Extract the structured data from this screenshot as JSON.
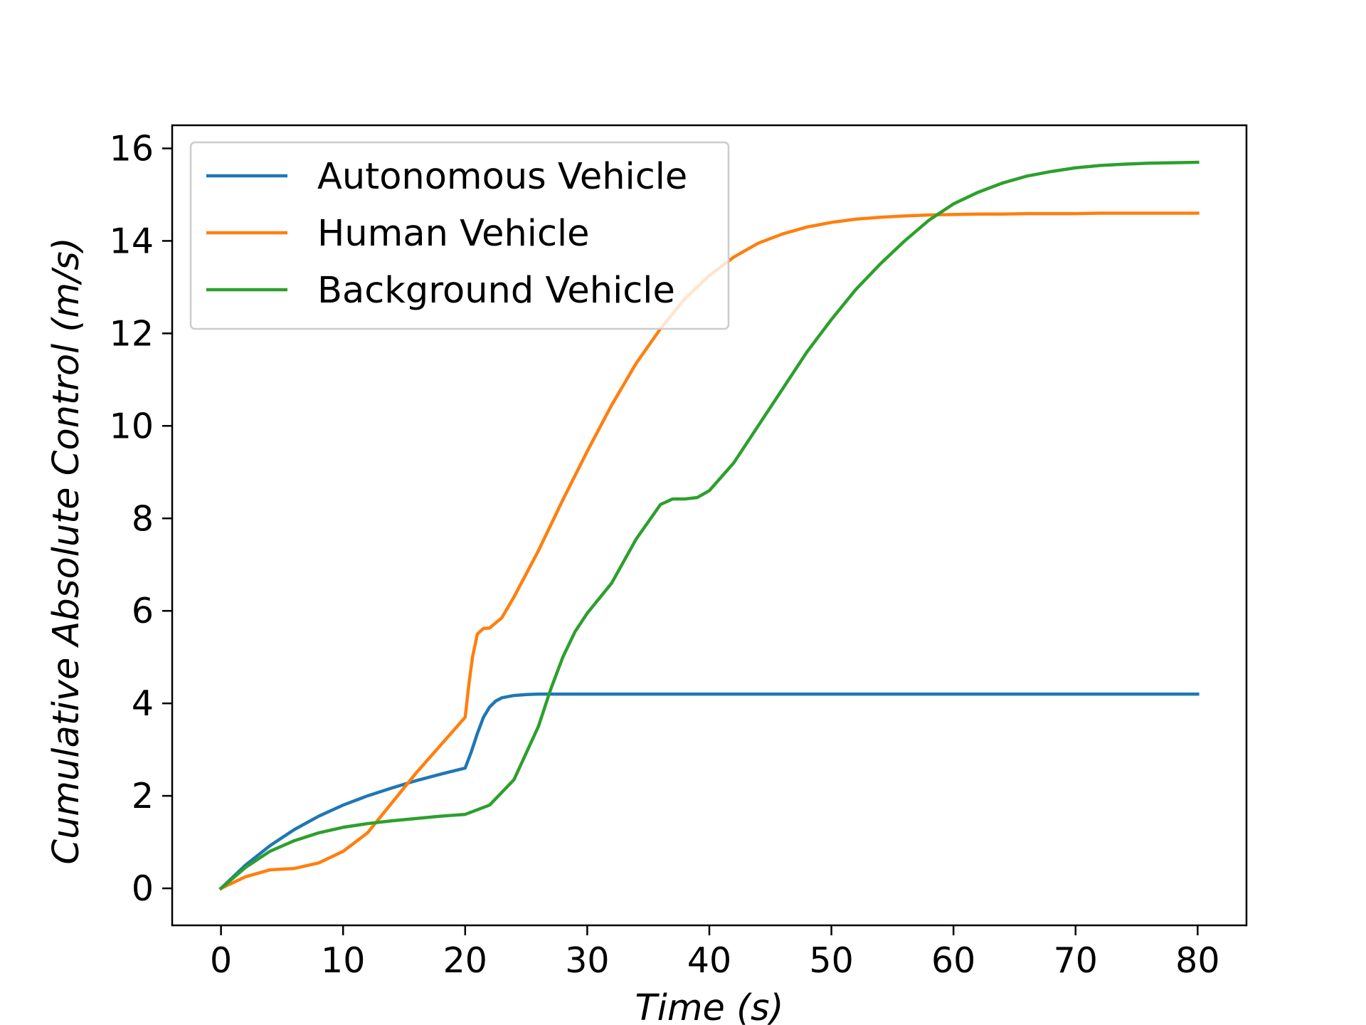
{
  "chart_data": {
    "type": "line",
    "title": "",
    "xlabel": "Time   (s)",
    "ylabel": "Cumulative   Absolute   Control   (m/s)",
    "xlim": [
      -4,
      84
    ],
    "ylim": [
      -0.8,
      16.5
    ],
    "xticks": [
      0,
      10,
      20,
      30,
      40,
      50,
      60,
      70,
      80
    ],
    "yticks": [
      0,
      2,
      4,
      6,
      8,
      10,
      12,
      14,
      16
    ],
    "grid": false,
    "legend_position": "top-left",
    "series": [
      {
        "name": "Autonomous Vehicle",
        "color": "#1f77b4",
        "x": [
          0,
          2,
          4,
          6,
          8,
          10,
          12,
          14,
          16,
          18,
          20,
          20.5,
          21,
          21.5,
          22,
          22.5,
          23,
          24,
          25,
          26,
          28,
          30,
          40,
          50,
          60,
          70,
          80
        ],
        "y": [
          0,
          0.5,
          0.92,
          1.27,
          1.56,
          1.8,
          2.0,
          2.17,
          2.33,
          2.47,
          2.6,
          2.95,
          3.35,
          3.7,
          3.92,
          4.05,
          4.12,
          4.17,
          4.19,
          4.2,
          4.2,
          4.2,
          4.2,
          4.2,
          4.2,
          4.2,
          4.2
        ]
      },
      {
        "name": "Human Vehicle",
        "color": "#ff7f0e",
        "x": [
          0,
          2,
          4,
          6,
          8,
          10,
          12,
          14,
          16,
          18,
          20,
          20.3,
          20.6,
          21,
          21.5,
          22,
          23,
          24,
          26,
          28,
          30,
          32,
          34,
          36,
          38,
          40,
          42,
          44,
          46,
          48,
          50,
          52,
          54,
          56,
          58,
          60,
          62,
          64,
          66,
          68,
          70,
          72,
          74,
          76,
          78,
          80
        ],
        "y": [
          0,
          0.25,
          0.4,
          0.43,
          0.55,
          0.8,
          1.2,
          1.85,
          2.5,
          3.1,
          3.7,
          4.4,
          5.0,
          5.5,
          5.62,
          5.63,
          5.85,
          6.3,
          7.3,
          8.4,
          9.45,
          10.45,
          11.35,
          12.1,
          12.75,
          13.25,
          13.65,
          13.95,
          14.15,
          14.3,
          14.4,
          14.47,
          14.51,
          14.54,
          14.56,
          14.57,
          14.58,
          14.58,
          14.59,
          14.59,
          14.59,
          14.6,
          14.6,
          14.6,
          14.6,
          14.6
        ]
      },
      {
        "name": "Background Vehicle",
        "color": "#2ca02c",
        "x": [
          0,
          2,
          4,
          6,
          8,
          10,
          12,
          14,
          16,
          18,
          20,
          22,
          24,
          26,
          27,
          28,
          29,
          30,
          32,
          34,
          36,
          37,
          38,
          39,
          40,
          42,
          44,
          46,
          48,
          50,
          52,
          54,
          56,
          58,
          60,
          62,
          64,
          66,
          68,
          70,
          72,
          74,
          76,
          78,
          80
        ],
        "y": [
          0,
          0.45,
          0.8,
          1.03,
          1.2,
          1.32,
          1.4,
          1.46,
          1.51,
          1.56,
          1.6,
          1.8,
          2.35,
          3.5,
          4.3,
          5.0,
          5.55,
          5.95,
          6.6,
          7.55,
          8.3,
          8.42,
          8.42,
          8.45,
          8.6,
          9.2,
          10.0,
          10.8,
          11.6,
          12.3,
          12.95,
          13.5,
          14.0,
          14.45,
          14.8,
          15.05,
          15.25,
          15.4,
          15.5,
          15.58,
          15.63,
          15.66,
          15.68,
          15.69,
          15.7
        ]
      }
    ]
  }
}
